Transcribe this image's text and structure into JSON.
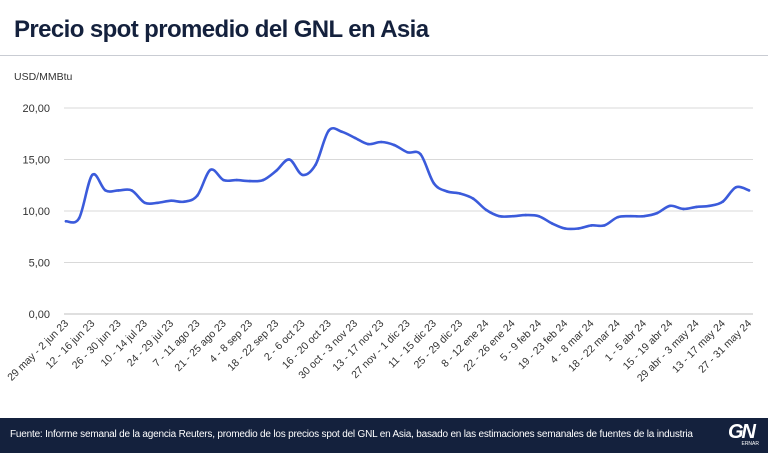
{
  "header": {
    "title": "Precio spot promedio del GNL en Asia",
    "unit": "USD/MMBtu"
  },
  "footer": {
    "source": "Fuente: Informe semanal de la agencia Reuters, promedio de los precios spot del GNL en Asia, basado en las estimaciones semanales de fuentes de la industria",
    "logo_text": "GN",
    "logo_sub": "ERNAR"
  },
  "colors": {
    "line": "#3b5bdb",
    "grid": "#d9d9d9",
    "title": "#14213d",
    "footer_bg": "#14213d"
  },
  "chart_data": {
    "type": "line",
    "title": "Precio spot promedio del GNL en Asia",
    "ylabel": "USD/MMBtu",
    "ylim": [
      0,
      20
    ],
    "yticks": [
      "0,00",
      "5,00",
      "10,00",
      "15,00",
      "20,00"
    ],
    "grid": true,
    "xtick_labels": [
      "29 may - 2 jun 23",
      "12 - 16 jun 23",
      "26 - 30 jun 23",
      "10 - 14 jul 23",
      "24 - 29 jul 23",
      "7 - 11 ago 23",
      "21 - 25 ago 23",
      "4 - 8 sep 23",
      "18 - 22 sep 23",
      "2 - 6 oct 23",
      "16 - 20 oct 23",
      "30 oct - 3 nov 23",
      "13 - 17 nov 23",
      "27 nov - 1 dic 23",
      "11 - 15 dic 23",
      "25 - 29 dic 23",
      "8 - 12 ene 24",
      "22 - 26 ene 24",
      "5 - 9 feb 24",
      "19 - 23 feb 24",
      "4 - 8 mar 24",
      "18 - 22 mar 24",
      "1 - 5 abr 24",
      "15 - 19 abr 24",
      "29 abr - 3 may 24",
      "13 - 17 may 24",
      "27 - 31 may 24"
    ],
    "series": [
      {
        "values": [
          9.0,
          9.3,
          13.5,
          12.0,
          12.0,
          12.0,
          10.8,
          10.8,
          11.0,
          10.9,
          11.5,
          14.0,
          13.0,
          13.0,
          12.9,
          13.0,
          13.9,
          15.0,
          13.5,
          14.5,
          17.8,
          17.7,
          17.1,
          16.5,
          16.7,
          16.4,
          15.7,
          15.5,
          12.7,
          11.9,
          11.7,
          11.2,
          10.1,
          9.5,
          9.5,
          9.6,
          9.5,
          8.8,
          8.3,
          8.3,
          8.6,
          8.6,
          9.4,
          9.5,
          9.5,
          9.8,
          10.5,
          10.2,
          10.4,
          10.5,
          10.9,
          12.3,
          12.0
        ]
      }
    ]
  }
}
